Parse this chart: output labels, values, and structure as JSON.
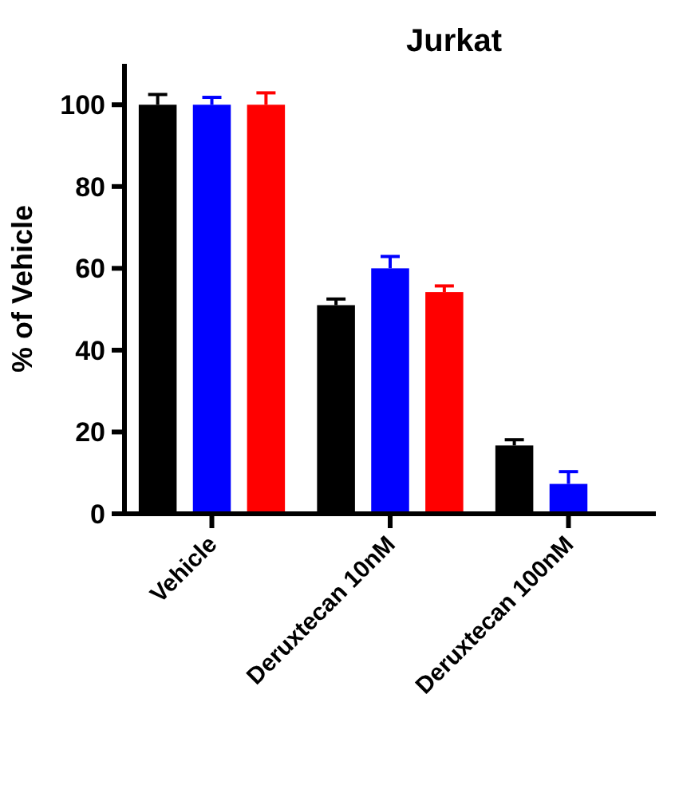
{
  "chart_data": {
    "type": "bar",
    "title": "Jurkat",
    "ylabel": "% of Vehicle",
    "categories": [
      "Vehicle",
      "Deruxtecan 10nM",
      "Deruxtecan 100nM"
    ],
    "series": [
      {
        "color": "#000000",
        "values": [
          100,
          51.0,
          16.7
        ],
        "errors": [
          [
            100,
            102.5
          ],
          [
            51.0,
            52.5
          ],
          [
            16.7,
            18.1
          ]
        ]
      },
      {
        "color": "#0000ff",
        "values": [
          100,
          60.0,
          7.3
        ],
        "errors": [
          [
            100,
            101.8
          ],
          [
            60.0,
            62.9
          ],
          [
            7.3,
            10.3
          ]
        ]
      },
      {
        "color": "#ff0000",
        "values": [
          100,
          54.2,
          null
        ],
        "errors": [
          [
            100,
            102.9
          ],
          [
            54.2,
            55.7
          ],
          null
        ]
      }
    ],
    "ylim": [
      0,
      110
    ],
    "yticks": [
      0,
      20,
      40,
      60,
      80,
      100
    ],
    "grid": false
  }
}
